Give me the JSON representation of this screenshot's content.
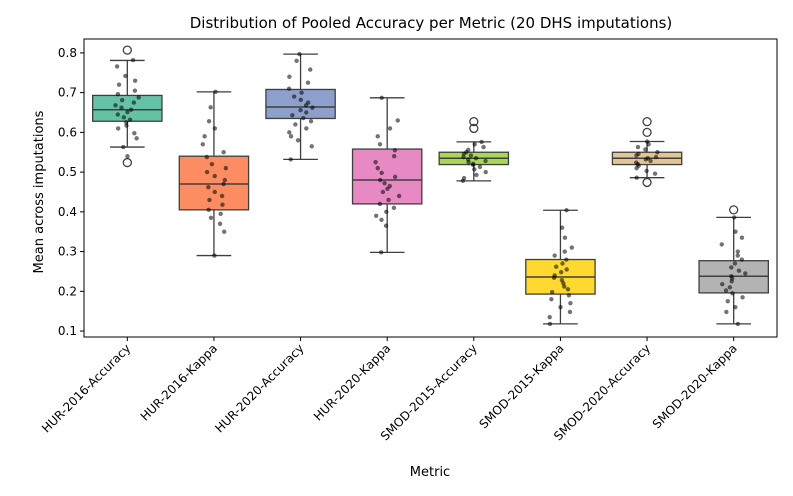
{
  "chart_data": {
    "type": "box",
    "title": "Distribution of Pooled Accuracy per Metric (20 DHS imputations)",
    "xlabel": "Metric",
    "ylabel": "Mean across imputations",
    "ylim": [
      0.085,
      0.835
    ],
    "yticks": [
      0.1,
      0.2,
      0.3,
      0.4,
      0.5,
      0.6,
      0.7,
      0.8
    ],
    "ytick_labels": [
      "0.1",
      "0.2",
      "0.3",
      "0.4",
      "0.5",
      "0.6",
      "0.7",
      "0.8"
    ],
    "legend": "none",
    "grid": false,
    "categories": [
      "HUR-2016-Accuracy",
      "HUR-2016-Kappa",
      "HUR-2020-Accuracy",
      "HUR-2020-Kappa",
      "SMOD-2015-Accuracy",
      "SMOD-2015-Kappa",
      "SMOD-2020-Accuracy",
      "SMOD-2020-Kappa"
    ],
    "boxes": [
      {
        "name": "HUR-2016-Accuracy",
        "color": "#66c2a5",
        "q1": 0.628,
        "median": 0.657,
        "q3": 0.693,
        "whisker_low": 0.563,
        "whisker_high": 0.781,
        "outliers": [
          0.807,
          0.524
        ],
        "points": [
          0.782,
          0.766,
          0.742,
          0.73,
          0.72,
          0.705,
          0.696,
          0.688,
          0.681,
          0.675,
          0.668,
          0.662,
          0.657,
          0.651,
          0.645,
          0.638,
          0.632,
          0.625,
          0.617,
          0.61,
          0.598,
          0.585,
          0.563,
          0.54
        ]
      },
      {
        "name": "HUR-2016-Kappa",
        "color": "#fc8d62",
        "q1": 0.405,
        "median": 0.47,
        "q3": 0.54,
        "whisker_low": 0.29,
        "whisker_high": 0.702,
        "outliers": [],
        "points": [
          0.702,
          0.663,
          0.628,
          0.61,
          0.59,
          0.57,
          0.55,
          0.538,
          0.52,
          0.51,
          0.5,
          0.49,
          0.48,
          0.47,
          0.462,
          0.45,
          0.44,
          0.43,
          0.418,
          0.405,
          0.395,
          0.385,
          0.37,
          0.35,
          0.29
        ]
      },
      {
        "name": "HUR-2020-Accuracy",
        "color": "#8da0cb",
        "q1": 0.635,
        "median": 0.664,
        "q3": 0.708,
        "whisker_low": 0.532,
        "whisker_high": 0.797,
        "outliers": [],
        "points": [
          0.797,
          0.78,
          0.758,
          0.74,
          0.725,
          0.71,
          0.7,
          0.69,
          0.682,
          0.675,
          0.668,
          0.662,
          0.656,
          0.65,
          0.643,
          0.636,
          0.628,
          0.62,
          0.61,
          0.6,
          0.59,
          0.58,
          0.565,
          0.532
        ]
      },
      {
        "name": "HUR-2020-Kappa",
        "color": "#e78ac3",
        "q1": 0.42,
        "median": 0.48,
        "q3": 0.558,
        "whisker_low": 0.298,
        "whisker_high": 0.687,
        "outliers": [],
        "points": [
          0.687,
          0.63,
          0.61,
          0.59,
          0.57,
          0.555,
          0.54,
          0.525,
          0.51,
          0.498,
          0.488,
          0.48,
          0.472,
          0.465,
          0.458,
          0.45,
          0.44,
          0.43,
          0.42,
          0.41,
          0.4,
          0.39,
          0.38,
          0.365,
          0.298
        ]
      },
      {
        "name": "SMOD-2015-Accuracy",
        "color": "#a6d854",
        "q1": 0.519,
        "median": 0.535,
        "q3": 0.55,
        "whisker_low": 0.478,
        "whisker_high": 0.576,
        "outliers": [
          0.627,
          0.61
        ],
        "points": [
          0.576,
          0.57,
          0.563,
          0.556,
          0.55,
          0.546,
          0.542,
          0.538,
          0.535,
          0.532,
          0.528,
          0.525,
          0.521,
          0.518,
          0.513,
          0.507,
          0.5,
          0.493,
          0.485,
          0.478
        ]
      },
      {
        "name": "SMOD-2015-Kappa",
        "color": "#ffd92f",
        "q1": 0.193,
        "median": 0.236,
        "q3": 0.28,
        "whisker_low": 0.118,
        "whisker_high": 0.404,
        "outliers": [],
        "points": [
          0.404,
          0.36,
          0.335,
          0.31,
          0.3,
          0.29,
          0.28,
          0.27,
          0.262,
          0.255,
          0.248,
          0.24,
          0.234,
          0.228,
          0.22,
          0.212,
          0.205,
          0.198,
          0.19,
          0.18,
          0.17,
          0.16,
          0.148,
          0.135,
          0.118
        ]
      },
      {
        "name": "SMOD-2020-Accuracy",
        "color": "#e5c494",
        "q1": 0.519,
        "median": 0.535,
        "q3": 0.55,
        "whisker_low": 0.486,
        "whisker_high": 0.577,
        "outliers": [
          0.627,
          0.6,
          0.474
        ],
        "points": [
          0.577,
          0.57,
          0.563,
          0.557,
          0.55,
          0.546,
          0.542,
          0.538,
          0.535,
          0.532,
          0.528,
          0.524,
          0.52,
          0.516,
          0.51,
          0.503,
          0.496,
          0.486
        ]
      },
      {
        "name": "SMOD-2020-Kappa",
        "color": "#b3b3b3",
        "q1": 0.196,
        "median": 0.238,
        "q3": 0.277,
        "whisker_low": 0.118,
        "whisker_high": 0.386,
        "outliers": [
          0.405
        ],
        "points": [
          0.386,
          0.35,
          0.335,
          0.318,
          0.3,
          0.29,
          0.28,
          0.27,
          0.26,
          0.252,
          0.245,
          0.238,
          0.232,
          0.225,
          0.218,
          0.21,
          0.202,
          0.195,
          0.185,
          0.175,
          0.16,
          0.148,
          0.118
        ]
      }
    ]
  }
}
